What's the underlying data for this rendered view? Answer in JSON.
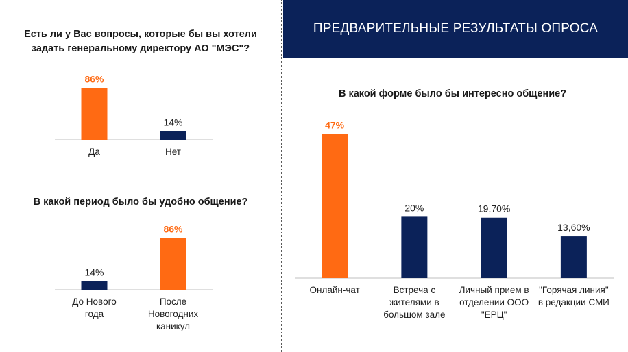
{
  "header": {
    "title": "ПРЕДВАРИТЕЛЬНЫЕ РЕЗУЛЬТАТЫ ОПРОСА"
  },
  "colors": {
    "accent": "#ff6a13",
    "primary": "#0b2259",
    "banner": "#0b2259"
  },
  "chart_data": [
    {
      "type": "bar",
      "title": "Есть ли у Вас вопросы, которые бы вы хотели задать генеральному директору АО \"МЭС\"?",
      "categories": [
        "Да",
        "Нет"
      ],
      "values": [
        86,
        14
      ],
      "labels": [
        "86%",
        "14%"
      ],
      "colors": [
        "#ff6a13",
        "#0b2259"
      ],
      "ylim": [
        0,
        100
      ]
    },
    {
      "type": "bar",
      "title": "В какой период было бы удобно общение?",
      "categories": [
        "До Нового года",
        "После Новогодних каникул"
      ],
      "values": [
        14,
        86
      ],
      "labels": [
        "14%",
        "86%"
      ],
      "colors": [
        "#0b2259",
        "#ff6a13"
      ],
      "ylim": [
        0,
        100
      ]
    },
    {
      "type": "bar",
      "title": "В какой форме было бы интересно общение?",
      "categories": [
        "Онлайн-чат",
        "Встреча с жителями в большом зале",
        "Личный прием в отделении ООО \"ЕРЦ\"",
        "\"Горячая линия\" в редакции СМИ"
      ],
      "values": [
        47,
        20,
        19.7,
        13.6
      ],
      "labels": [
        "47%",
        "20%",
        "19,70%",
        "13,60%"
      ],
      "colors": [
        "#ff6a13",
        "#0b2259",
        "#0b2259",
        "#0b2259"
      ],
      "ylim": [
        0,
        50
      ]
    }
  ]
}
